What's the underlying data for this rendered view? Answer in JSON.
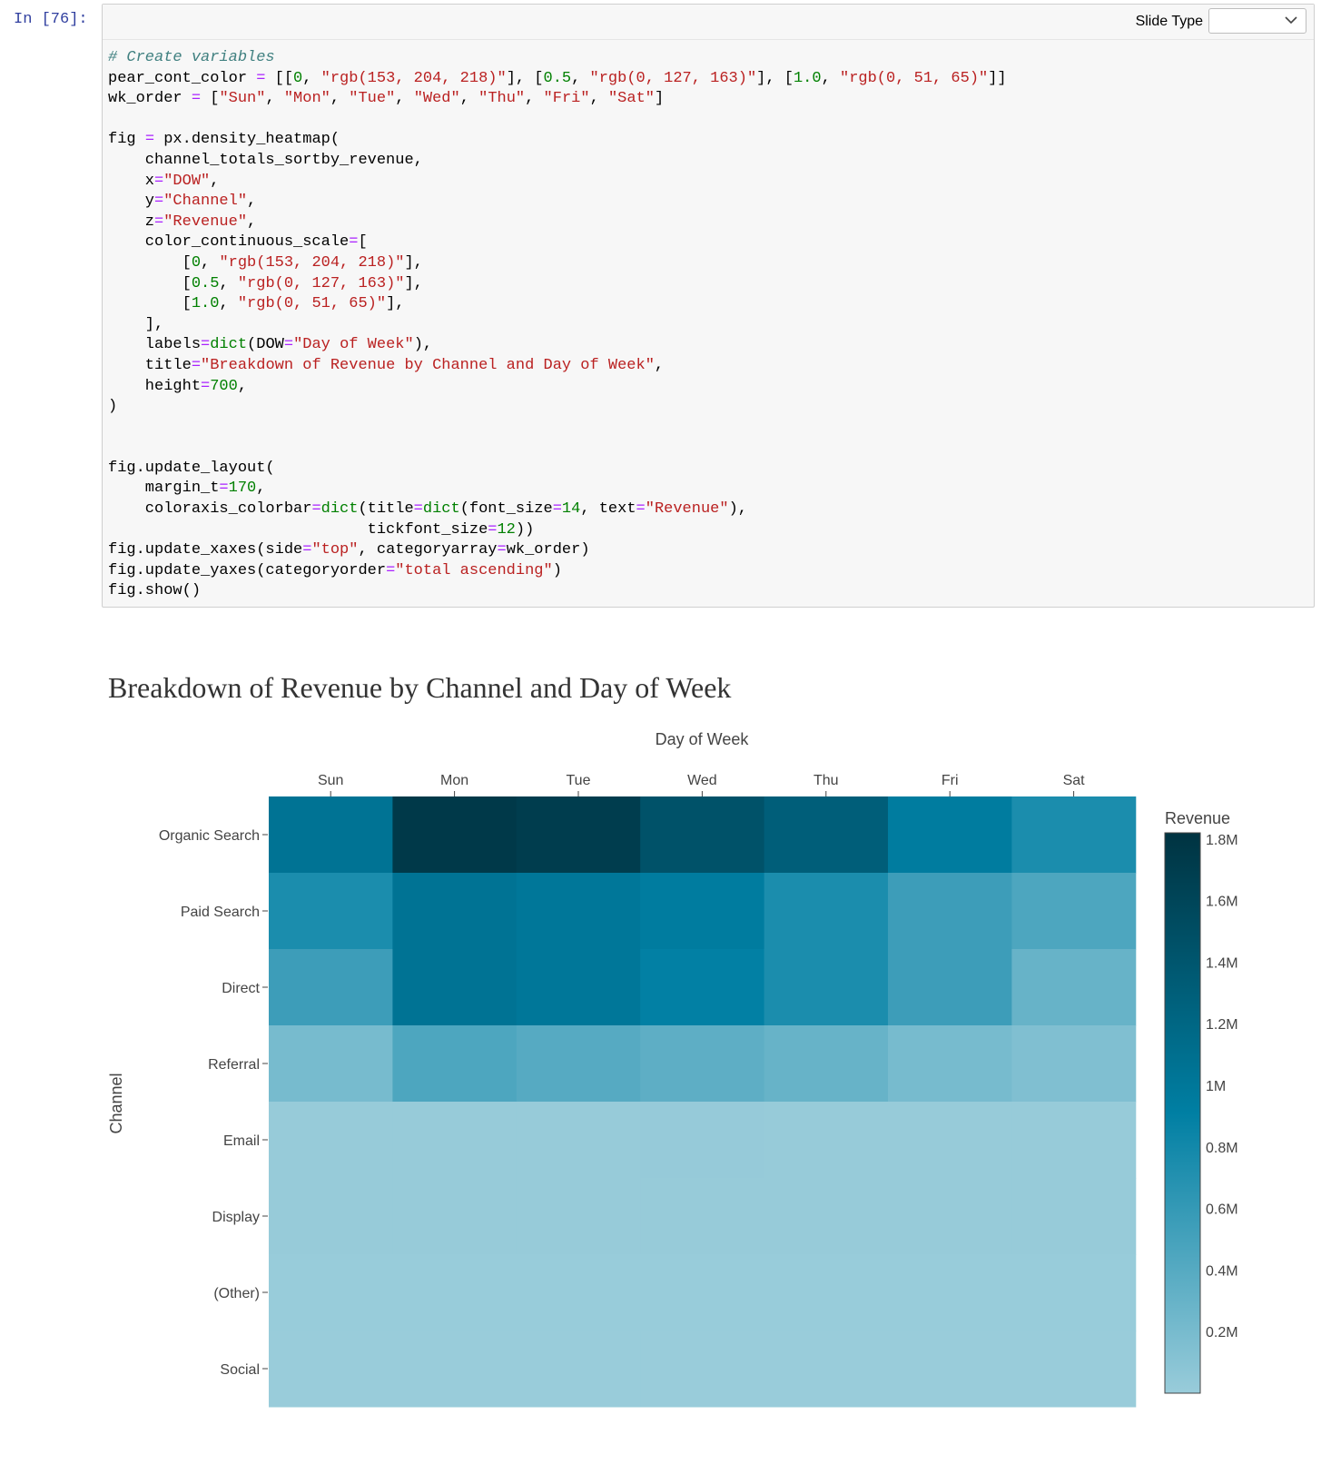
{
  "prompt": "In [76]:",
  "toolbar": {
    "slide_type_label": "Slide Type",
    "slide_type_value": ""
  },
  "code": {
    "line1": "# Create variables",
    "pear_var": "pear_cont_color",
    "wk_var": "wk_order"
  },
  "colors": {
    "low": "#99ccda",
    "mid": "#007fa3",
    "high": "#003341",
    "prompt": "#303f9f"
  },
  "chart_data": {
    "type": "heatmap",
    "title": "Breakdown of Revenue by Channel and Day of Week",
    "xlabel": "Day of Week",
    "ylabel": "Channel",
    "colorbar_title": "Revenue",
    "x": [
      "Sun",
      "Mon",
      "Tue",
      "Wed",
      "Thu",
      "Fri",
      "Sat"
    ],
    "y": [
      "Organic Search",
      "Paid Search",
      "Direct",
      "Referral",
      "Email",
      "Display",
      "(Other)",
      "Social"
    ],
    "z": [
      [
        1.05,
        1.75,
        1.7,
        1.45,
        1.3,
        0.95,
        0.75
      ],
      [
        0.75,
        1.05,
        1.0,
        0.95,
        0.75,
        0.55,
        0.45
      ],
      [
        0.55,
        1.05,
        1.0,
        0.9,
        0.75,
        0.55,
        0.3
      ],
      [
        0.2,
        0.45,
        0.4,
        0.35,
        0.3,
        0.2,
        0.15
      ],
      [
        0.01,
        0.01,
        0.01,
        0.02,
        0.01,
        0.01,
        0.01
      ],
      [
        0.01,
        0.01,
        0.01,
        0.01,
        0.01,
        0.01,
        0.01
      ],
      [
        0.005,
        0.005,
        0.005,
        0.005,
        0.005,
        0.005,
        0.005
      ],
      [
        0.002,
        0.002,
        0.002,
        0.002,
        0.002,
        0.002,
        0.002
      ]
    ],
    "z_unit": "M",
    "zlim": [
      0,
      1.82
    ],
    "colorbar_ticks": [
      "1.8M",
      "1.6M",
      "1.4M",
      "1.2M",
      "1M",
      "0.8M",
      "0.6M",
      "0.4M",
      "0.2M"
    ],
    "colorbar_tick_values": [
      1.8,
      1.6,
      1.4,
      1.2,
      1.0,
      0.8,
      0.6,
      0.4,
      0.2
    ],
    "colorscale": [
      [
        0,
        "rgb(153, 204, 218)"
      ],
      [
        0.5,
        "rgb(0, 127, 163)"
      ],
      [
        1.0,
        "rgb(0, 51, 65)"
      ]
    ],
    "x_axis_side": "top",
    "grid": false
  }
}
